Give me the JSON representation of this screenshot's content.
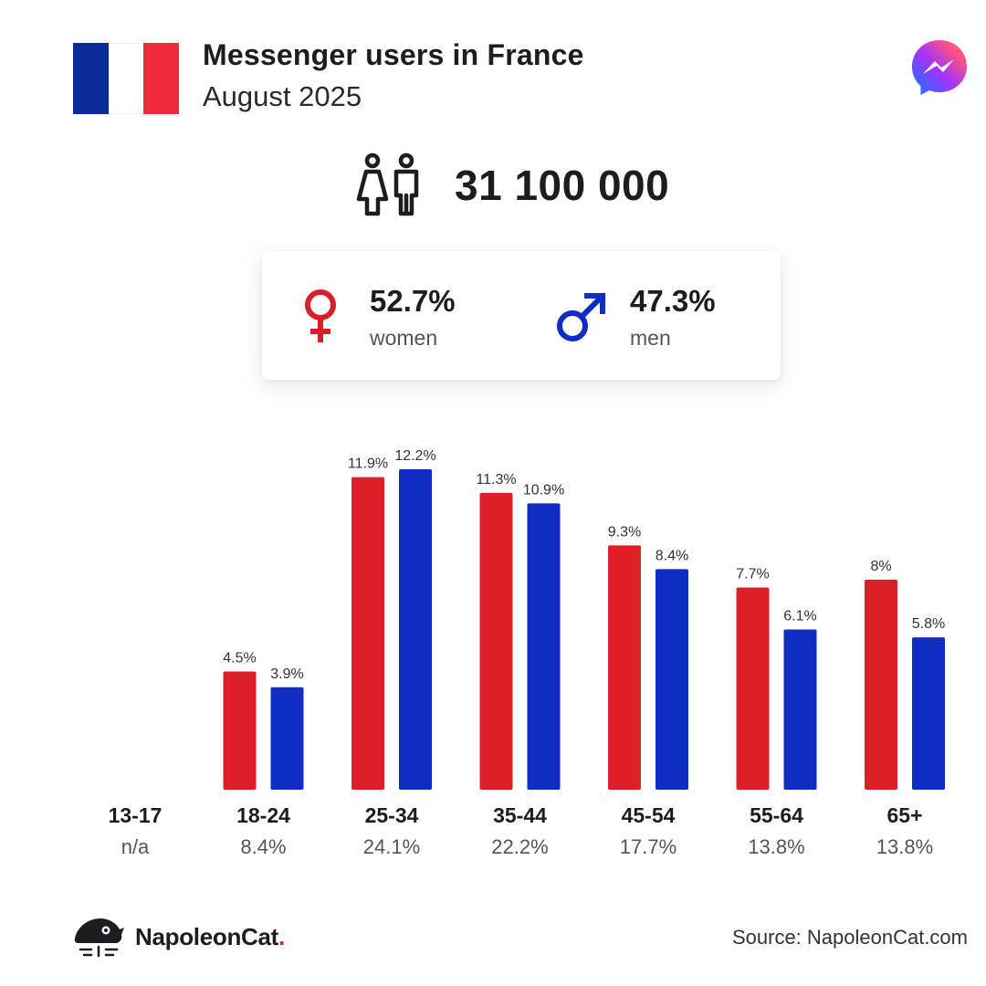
{
  "header": {
    "title": "Messenger users in France",
    "subtitle": "August 2025",
    "flag_colors": [
      "#0a2a97",
      "#ffffff",
      "#ee2a3c"
    ],
    "app_icon": "messenger-icon"
  },
  "total": {
    "value": "31 100 000",
    "icon": "people-icon"
  },
  "gender": {
    "women": {
      "pct": "52.7%",
      "label": "women",
      "color": "#d91f2a",
      "icon": "female-icon"
    },
    "men": {
      "pct": "47.3%",
      "label": "men",
      "color": "#0f2cc3",
      "icon": "male-icon"
    }
  },
  "chart_data": {
    "type": "bar",
    "categories": [
      "13-17",
      "18-24",
      "25-34",
      "35-44",
      "45-54",
      "55-64",
      "65+"
    ],
    "category_shares": [
      "n/a",
      "8.4%",
      "24.1%",
      "22.2%",
      "17.7%",
      "13.8%",
      "13.8%"
    ],
    "series": [
      {
        "name": "women",
        "color": "#dd1f27",
        "values": [
          null,
          4.5,
          11.9,
          11.3,
          9.3,
          7.7,
          8
        ],
        "labels": [
          "",
          "4.5%",
          "11.9%",
          "11.3%",
          "9.3%",
          "7.7%",
          "8%"
        ]
      },
      {
        "name": "men",
        "color": "#0f2cc3",
        "values": [
          null,
          3.9,
          12.2,
          10.9,
          8.4,
          6.1,
          5.8
        ],
        "labels": [
          "",
          "3.9%",
          "12.2%",
          "10.9%",
          "8.4%",
          "6.1%",
          "5.8%"
        ]
      }
    ],
    "ylim": [
      0,
      12.2
    ],
    "grid": false
  },
  "footer": {
    "brand": "NapoleonCat",
    "brand_dot": ".",
    "source": "Source: NapoleonCat.com",
    "logo_icon": "napoleoncat-logo-icon"
  }
}
